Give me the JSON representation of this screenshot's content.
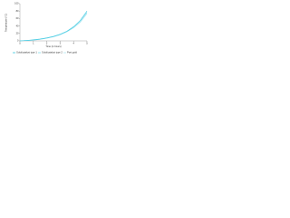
{
  "chart_data": {
    "type": "line",
    "x_label": "Time (in hours)",
    "y_label": "Temperature (°C)",
    "x": [
      0,
      0.5,
      1,
      1.5,
      2,
      2.5,
      3,
      3.5,
      4,
      4.5,
      5
    ],
    "series": [
      {
        "name": "Gold/catalyst type 1",
        "color": "#3cc8e0",
        "values": [
          0,
          1,
          3,
          5,
          8,
          12,
          18,
          26,
          38,
          55,
          80
        ]
      },
      {
        "name": "Gold/catalyst type 2",
        "color": "#7fdcec",
        "values": [
          0,
          1,
          2,
          4,
          7,
          11,
          17,
          25,
          36,
          52,
          76
        ]
      },
      {
        "name": "Post gold",
        "color": "#b5e9f3",
        "values": [
          0,
          1,
          2,
          4,
          7,
          11,
          16,
          24,
          35,
          50,
          73
        ]
      }
    ],
    "xlim": [
      0,
      5
    ],
    "xticks": [
      0,
      1,
      2,
      3,
      4,
      5
    ],
    "ylim": [
      0,
      100
    ],
    "yticks": [
      0,
      20,
      40,
      60,
      80,
      100
    ],
    "grid": false
  }
}
